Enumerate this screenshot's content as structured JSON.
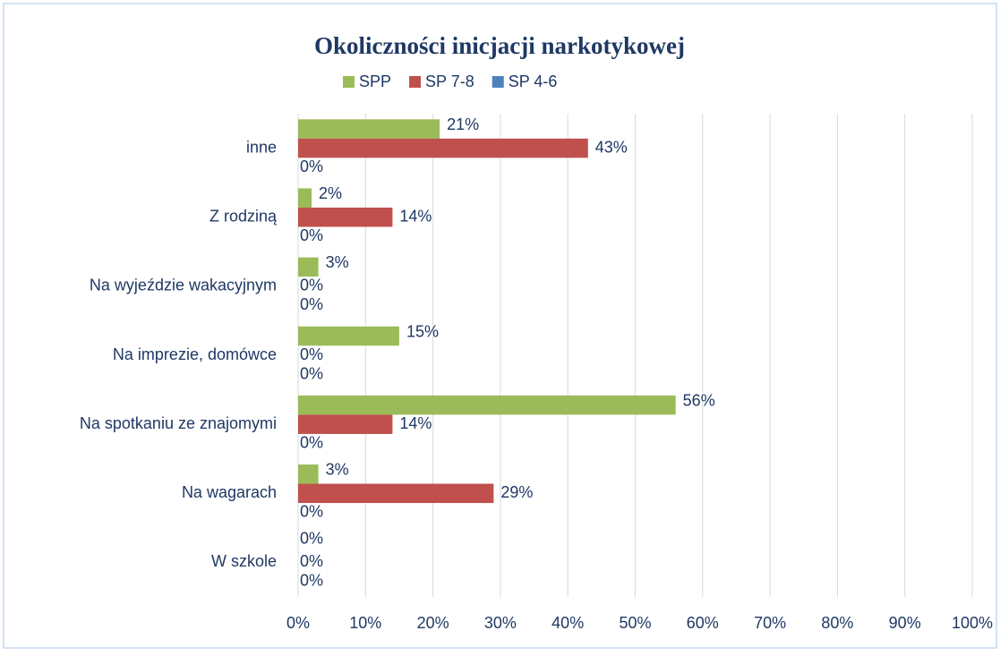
{
  "chart_data": {
    "type": "hbar",
    "title": "Okoliczności inicjacji narkotykowej",
    "categories": [
      "inne",
      "Z rodziną",
      "Na wyjeździe wakacyjnym",
      "Na imprezie, domówce",
      "Na spotkaniu ze znajomymi",
      "Na wagarach",
      "W szkole"
    ],
    "series": [
      {
        "name": "SPP",
        "color": "#9bbb59",
        "values": [
          21,
          2,
          3,
          15,
          56,
          3,
          0
        ],
        "value_labels": [
          "21%",
          "2%",
          "3%",
          "15%",
          "56%",
          "3%",
          "0%"
        ]
      },
      {
        "name": "SP 7-8",
        "color": "#c0504d",
        "values": [
          43,
          14,
          0,
          0,
          14,
          29,
          0
        ],
        "value_labels": [
          "43%",
          "14%",
          "0%",
          "0%",
          "14%",
          "29%",
          "0%"
        ]
      },
      {
        "name": "SP 4-6",
        "color": "#4f81bd",
        "values": [
          0,
          0,
          0,
          0,
          0,
          0,
          0
        ],
        "value_labels": [
          "0%",
          "0%",
          "0%",
          "0%",
          "0%",
          "0%",
          "0%"
        ]
      }
    ],
    "xlim": [
      0,
      100
    ],
    "xticks": [
      {
        "value": 0,
        "label": "0%"
      },
      {
        "value": 10,
        "label": "10%"
      },
      {
        "value": 20,
        "label": "20%"
      },
      {
        "value": 30,
        "label": "30%"
      },
      {
        "value": 40,
        "label": "40%"
      },
      {
        "value": 50,
        "label": "50%"
      },
      {
        "value": 60,
        "label": "60%"
      },
      {
        "value": 70,
        "label": "70%"
      },
      {
        "value": 80,
        "label": "80%"
      },
      {
        "value": 90,
        "label": "90%"
      },
      {
        "value": 100,
        "label": "100%"
      }
    ],
    "grid": true
  }
}
